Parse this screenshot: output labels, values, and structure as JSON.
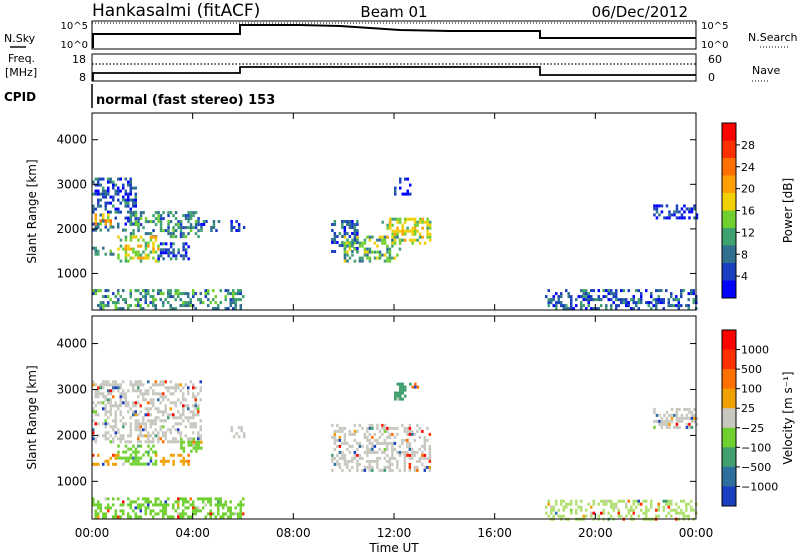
{
  "header": {
    "station": "Hankasalmi (fitACF)",
    "beam": "Beam 01",
    "date": "06/Dec/2012"
  },
  "status_panels": {
    "nsky_label": "N.Sky",
    "nsky_ticks": [
      "10^5",
      "10^0"
    ],
    "nsearch_label": "N.Search",
    "nsearch_ticks": [
      "10^5",
      "10^0"
    ],
    "freq_label_line1": "Freq.",
    "freq_label_line2": "[MHz]",
    "freq_ticks": [
      "18",
      "8"
    ],
    "nave_label": "Nave",
    "nave_ticks": [
      "60",
      "0"
    ],
    "cpid_label": "CPID",
    "cpid_text": "normal (fast stereo) 153"
  },
  "chart_data": [
    {
      "type": "heatmap",
      "name": "power",
      "ylabel": "Slant Range [km]",
      "xlabel": "",
      "xlim": [
        0,
        24
      ],
      "ylim": [
        180,
        4600
      ],
      "yticks": [
        1000,
        2000,
        3000,
        4000
      ],
      "colorbar": {
        "label": "Power [dB]",
        "ticks": [
          "4",
          "8",
          "12",
          "16",
          "20",
          "24",
          "28"
        ],
        "colors": [
          "#0000ff",
          "#1a3fbf",
          "#2f6f8f",
          "#3fa070",
          "#6fd02f",
          "#f0d000",
          "#ffa000",
          "#ff7000",
          "#ff3000",
          "#ff0000"
        ]
      },
      "echo_regions": [
        {
          "t": [
            0.0,
            1.7
          ],
          "r": [
            1950,
            3150
          ],
          "level": 2
        },
        {
          "t": [
            0.0,
            0.7
          ],
          "r": [
            2100,
            2350
          ],
          "level": 6
        },
        {
          "t": [
            1.5,
            4.2
          ],
          "r": [
            1850,
            2400
          ],
          "level": 3
        },
        {
          "t": [
            4.3,
            5.0
          ],
          "r": [
            1950,
            2200
          ],
          "level": 2
        },
        {
          "t": [
            5.5,
            6.0
          ],
          "r": [
            1950,
            2200
          ],
          "level": 1
        },
        {
          "t": [
            0.0,
            0.9
          ],
          "r": [
            1400,
            1600
          ],
          "level": 3
        },
        {
          "t": [
            1.0,
            2.6
          ],
          "r": [
            1300,
            1850
          ],
          "level": 5
        },
        {
          "t": [
            2.6,
            3.8
          ],
          "r": [
            1350,
            1700
          ],
          "level": 2
        },
        {
          "t": [
            9.5,
            10.5
          ],
          "r": [
            1500,
            2200
          ],
          "level": 2
        },
        {
          "t": [
            10.0,
            12.2
          ],
          "r": [
            1250,
            1850
          ],
          "level": 4
        },
        {
          "t": [
            11.5,
            13.4
          ],
          "r": [
            1700,
            2250
          ],
          "level": 5
        },
        {
          "t": [
            12.0,
            12.6
          ],
          "r": [
            2750,
            3150
          ],
          "level": 1
        },
        {
          "t": [
            22.3,
            24.0
          ],
          "r": [
            2250,
            2550
          ],
          "level": 1
        },
        {
          "t": [
            0.0,
            6.0
          ],
          "r": [
            200,
            650
          ],
          "level": 3
        },
        {
          "t": [
            18.0,
            24.0
          ],
          "r": [
            200,
            650
          ],
          "level": 2
        }
      ]
    },
    {
      "type": "heatmap",
      "name": "velocity",
      "ylabel": "Slant Range [km]",
      "xlabel": "Time UT",
      "xlim": [
        0,
        24
      ],
      "ylim": [
        180,
        4600
      ],
      "yticks": [
        1000,
        2000,
        3000,
        4000
      ],
      "xticks": [
        "00:00",
        "04:00",
        "08:00",
        "12:00",
        "16:00",
        "20:00",
        "00:00"
      ],
      "colorbar": {
        "label": "Velocity [m s⁻¹]",
        "ticks": [
          "1000",
          "500",
          "100",
          "25",
          "−25",
          "−100",
          "−500",
          "−1000"
        ],
        "colors": [
          "#1a3fbf",
          "#2f6f9f",
          "#3f9f6f",
          "#6fd02f",
          "#c8c8c0",
          "#f0a000",
          "#ff7000",
          "#ff3000",
          "#ff0000"
        ]
      },
      "echo_regions": [
        {
          "t": [
            0.0,
            4.3
          ],
          "r": [
            1850,
            3200
          ],
          "color": "#c8c8c0"
        },
        {
          "t": [
            5.5,
            6.0
          ],
          "r": [
            1950,
            2200
          ],
          "color": "#c8c8c0"
        },
        {
          "t": [
            9.5,
            13.4
          ],
          "r": [
            1250,
            2250
          ],
          "color": "#c8c8c0"
        },
        {
          "t": [
            22.3,
            24.0
          ],
          "r": [
            2200,
            2600
          ],
          "color": "#c8c8c0"
        },
        {
          "t": [
            0.0,
            1.0
          ],
          "r": [
            1400,
            1600
          ],
          "color": "#f0a000"
        },
        {
          "t": [
            1.0,
            2.5
          ],
          "r": [
            1350,
            1800
          ],
          "color": "#6fd02f"
        },
        {
          "t": [
            2.5,
            3.8
          ],
          "r": [
            1400,
            1600
          ],
          "color": "#f0a000"
        },
        {
          "t": [
            3.5,
            4.3
          ],
          "r": [
            1650,
            1950
          ],
          "color": "#6fd02f"
        },
        {
          "t": [
            12.0,
            12.4
          ],
          "r": [
            2800,
            3150
          ],
          "color": "#3f9f6f"
        },
        {
          "t": [
            12.6,
            12.9
          ],
          "r": [
            3050,
            3150
          ],
          "color": "#ff7000"
        },
        {
          "t": [
            0.0,
            6.0
          ],
          "r": [
            200,
            650
          ],
          "color": "#6fd02f"
        },
        {
          "t": [
            18.0,
            24.0
          ],
          "r": [
            200,
            600
          ],
          "color": "#b0e070"
        }
      ]
    }
  ]
}
